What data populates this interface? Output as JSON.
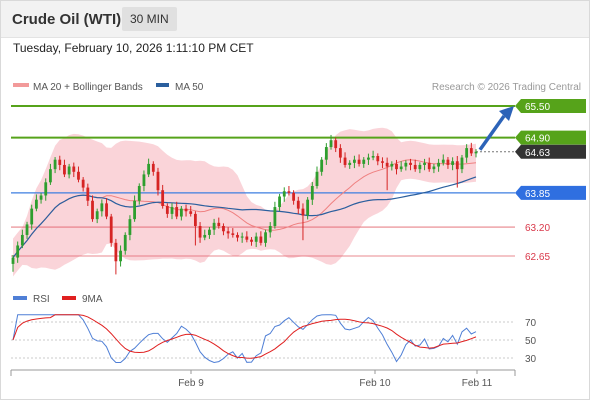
{
  "header": {
    "title": "Crude Oil (WTI)",
    "interval": "30 MIN"
  },
  "timestamp": "Tuesday, February 10, 2026 1:11:10 PM CET",
  "legend": {
    "ma20": "MA 20 + Bollinger Bands",
    "ma50": "MA 50",
    "copyright": "Research © 2026 Trading Central",
    "rsi": "RSI",
    "ma9": "9MA"
  },
  "colors": {
    "up": "#2e9e2e",
    "down": "#d62424",
    "bollinger": "#f8c6cc",
    "ma20": "#ef8080",
    "ma50": "#2b5f9e",
    "resistance": "#56a31a",
    "pivot": "#3d7ee0",
    "support": "#e2606a",
    "current": "#333333",
    "rsi_line": "#4f7fd6",
    "ma9_line": "#e02020"
  },
  "chart_data": [
    {
      "type": "candlestick",
      "x_labels": [
        "Feb 9",
        "Feb 10",
        "Feb 11"
      ],
      "ylim": [
        62.3,
        65.9
      ],
      "current_price": 64.63,
      "levels": [
        {
          "label": "65.50",
          "value": 65.5,
          "kind": "resistance"
        },
        {
          "label": "64.90",
          "value": 64.9,
          "kind": "resistance"
        },
        {
          "label": "64.63",
          "value": 64.63,
          "kind": "current"
        },
        {
          "label": "63.85",
          "value": 63.85,
          "kind": "pivot"
        },
        {
          "label": "63.20",
          "value": 63.2,
          "kind": "support"
        },
        {
          "label": "62.65",
          "value": 62.65,
          "kind": "support"
        }
      ],
      "forecast": {
        "from": 64.63,
        "to": 65.5
      },
      "close": [
        62.62,
        62.85,
        63.05,
        63.25,
        63.55,
        63.72,
        63.8,
        64.05,
        64.3,
        64.48,
        64.38,
        64.2,
        64.35,
        64.25,
        64.1,
        63.95,
        63.7,
        63.35,
        63.5,
        63.65,
        63.4,
        62.9,
        62.55,
        62.75,
        63.05,
        63.35,
        63.7,
        63.98,
        64.2,
        64.4,
        64.25,
        63.9,
        63.6,
        63.45,
        63.58,
        63.4,
        63.55,
        63.5,
        63.45,
        63.22,
        63.0,
        63.05,
        63.15,
        63.28,
        63.22,
        63.12,
        63.08,
        63.05,
        63.0,
        63.02,
        62.96,
        62.92,
        63.02,
        62.9,
        63.1,
        63.22,
        63.58,
        63.78,
        63.88,
        63.85,
        63.7,
        63.55,
        63.42,
        63.72,
        63.98,
        64.25,
        64.48,
        64.72,
        64.85,
        64.7,
        64.52,
        64.38,
        64.42,
        64.48,
        64.4,
        64.48,
        64.52,
        64.55,
        64.45,
        64.42,
        64.35,
        64.4,
        64.3,
        64.35,
        64.42,
        64.38,
        64.3,
        64.38,
        64.42,
        64.3,
        64.35,
        64.42,
        64.48,
        64.38,
        64.45,
        64.3,
        64.52,
        64.7,
        64.6,
        64.63
      ]
    },
    {
      "type": "line",
      "name": "RSI",
      "yticks": [
        30,
        50,
        70
      ],
      "ylim": [
        20,
        80
      ],
      "x_labels": [
        "Feb 9",
        "Feb 10",
        "Feb 11"
      ]
    }
  ]
}
